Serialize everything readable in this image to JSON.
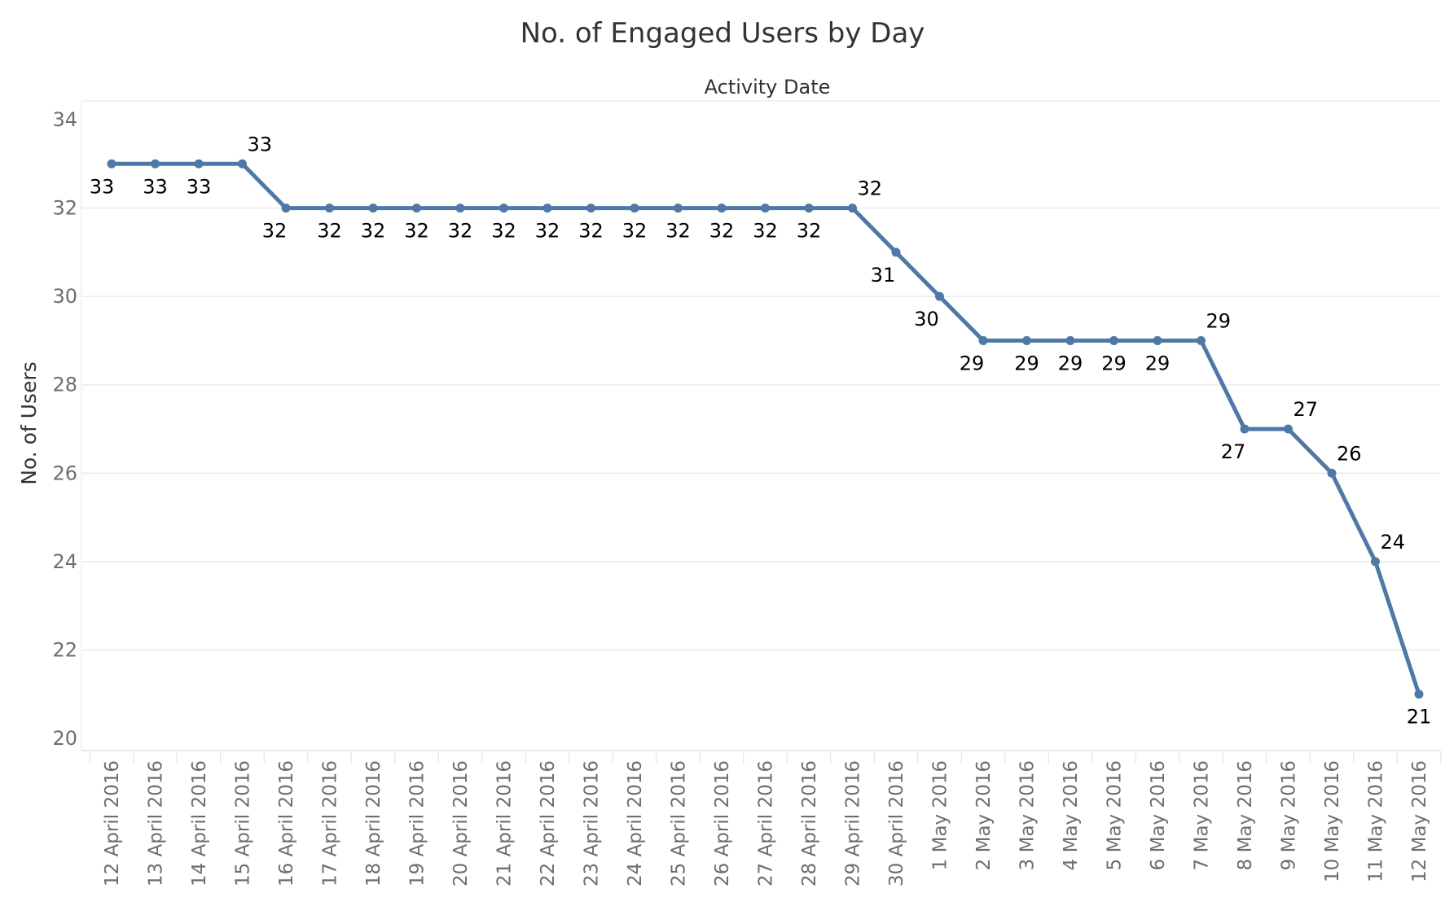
{
  "chart_data": {
    "type": "line",
    "title": "No. of Engaged Users by Day",
    "column_header": "Activity Date",
    "ylabel": "No. of Users",
    "xlabel": "",
    "ylim": [
      20,
      34
    ],
    "yticks": [
      20,
      22,
      24,
      26,
      28,
      30,
      32,
      34
    ],
    "grid": true,
    "line_color": "#4e79a7",
    "categories": [
      "12 April 2016",
      "13 April 2016",
      "14 April 2016",
      "15 April 2016",
      "16 April 2016",
      "17 April 2016",
      "18 April 2016",
      "19 April 2016",
      "20 April 2016",
      "21 April 2016",
      "22 April 2016",
      "23 April 2016",
      "24 April 2016",
      "25 April 2016",
      "26 April 2016",
      "27 April 2016",
      "28 April 2016",
      "29 April 2016",
      "30 April 2016",
      "1 May 2016",
      "2 May 2016",
      "3 May 2016",
      "4 May 2016",
      "5 May 2016",
      "6 May 2016",
      "7 May 2016",
      "8 May 2016",
      "9 May 2016",
      "10 May 2016",
      "11 May 2016",
      "12 May 2016"
    ],
    "values": [
      33,
      33,
      33,
      33,
      32,
      32,
      32,
      32,
      32,
      32,
      32,
      32,
      32,
      32,
      32,
      32,
      32,
      32,
      31,
      30,
      29,
      29,
      29,
      29,
      29,
      29,
      27,
      27,
      26,
      24,
      21
    ],
    "label_placement": [
      "below",
      "below",
      "below",
      "above",
      "below",
      "below",
      "below",
      "below",
      "below",
      "below",
      "below",
      "below",
      "below",
      "below",
      "below",
      "below",
      "below",
      "above",
      "below",
      "below",
      "below",
      "below",
      "below",
      "below",
      "below",
      "above",
      "below",
      "above",
      "above",
      "above",
      "below"
    ]
  }
}
